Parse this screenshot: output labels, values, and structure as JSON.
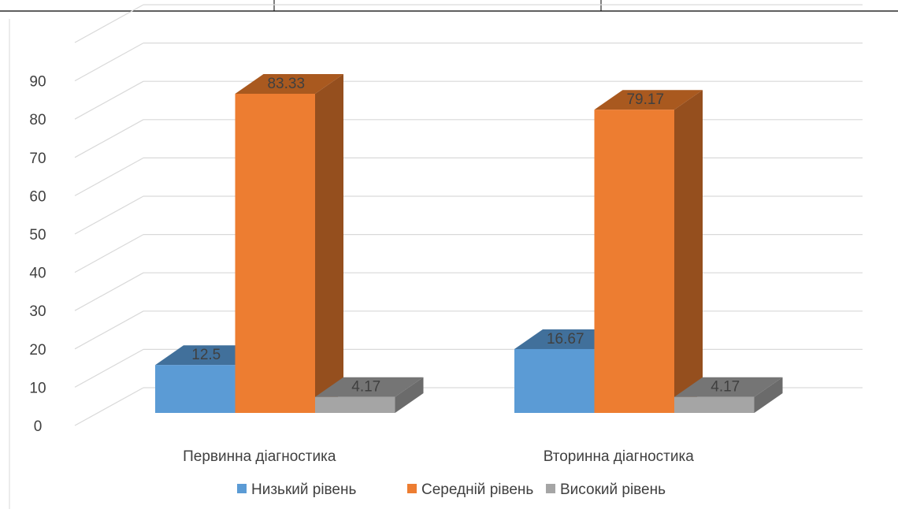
{
  "chart_data": {
    "type": "bar",
    "categories": [
      "Первинна діагностика",
      "Вторинна діагностика"
    ],
    "series": [
      {
        "name": "Низький рівень",
        "values": [
          12.5,
          16.67
        ]
      },
      {
        "name": "Середній рівень",
        "values": [
          83.33,
          79.17
        ]
      },
      {
        "name": "Високий рівень",
        "values": [
          4.17,
          4.17
        ]
      }
    ],
    "data_labels": [
      [
        "12.5",
        "16.67"
      ],
      [
        "83.33",
        "79.17"
      ],
      [
        "4.17",
        "4.17"
      ]
    ],
    "y_ticks": [
      "0",
      "10",
      "20",
      "30",
      "40",
      "50",
      "60",
      "70",
      "80",
      "90"
    ],
    "ylim": [
      0,
      100
    ],
    "grid": true,
    "style": "3d-column",
    "legend_position": "bottom",
    "colors": {
      "series": [
        "#5B9BD5",
        "#ED7D31",
        "#A5A5A5"
      ],
      "series_top": [
        "#41709B",
        "#A9591F",
        "#757575"
      ],
      "series_side": [
        "#3A6590",
        "#954F1E",
        "#6B6B6B"
      ],
      "gridline": "#D9D9D9",
      "axis_text": "#404040",
      "label_text": "#404040"
    }
  }
}
